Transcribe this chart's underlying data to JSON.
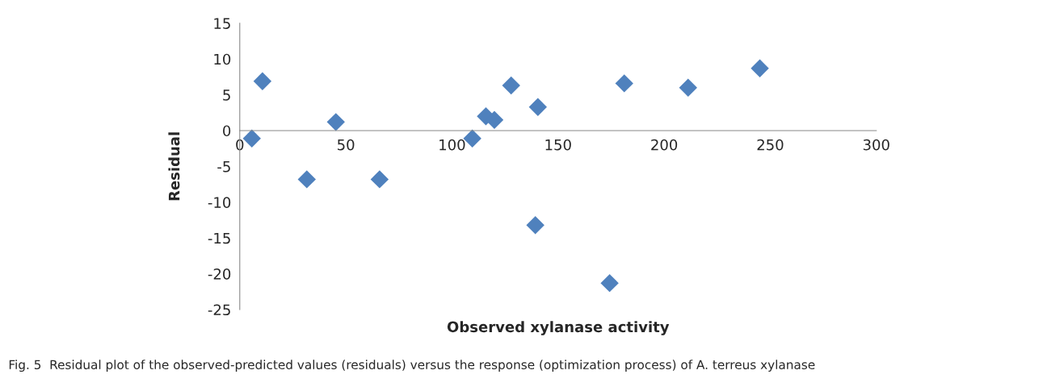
{
  "chart_data": {
    "type": "scatter",
    "xlabel": "Observed xylanase activity",
    "ylabel": "Residual",
    "x": [
      5.7,
      10.7,
      31.6,
      45.3,
      65.9,
      109.6,
      116,
      120,
      127.9,
      140.5,
      139.3,
      174.3,
      181.2,
      211.3,
      245.1
    ],
    "values": [
      -1.1,
      6.9,
      -6.8,
      1.2,
      -6.8,
      -1.1,
      2.0,
      1.5,
      6.3,
      3.3,
      -13.2,
      -21.3,
      6.6,
      6.0,
      8.7
    ],
    "color": "#4f81bd",
    "marker": "diamond",
    "grid": false,
    "xlim": [
      0,
      300
    ],
    "xticks": [
      0,
      50,
      100,
      150,
      200,
      250,
      300
    ],
    "ylim": [
      -25,
      15
    ],
    "yticks": [
      -25,
      -20,
      -15,
      -10,
      -5,
      0,
      5,
      10,
      15
    ],
    "annotations": [
      "Fig. 5  Residual plot of the observed-predicted values (residuals) versus the response (optimization process) of A. terreus xylanase"
    ]
  }
}
